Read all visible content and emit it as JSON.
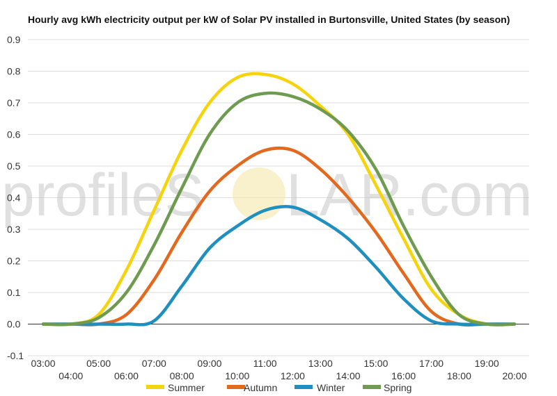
{
  "chart_data": {
    "type": "line",
    "title": "Hourly avg kWh electricity output per kW of Solar PV installed in Burtonsville, United States (by season)",
    "xlabel": "",
    "ylabel": "",
    "ylim": [
      -0.1,
      0.9
    ],
    "yticks": [
      "0.9",
      "0.8",
      "0.7",
      "0.6",
      "0.5",
      "0.4",
      "0.3",
      "0.2",
      "0.1",
      "0.0",
      "-0.1"
    ],
    "categories": [
      "03:00",
      "04:00",
      "05:00",
      "06:00",
      "07:00",
      "08:00",
      "09:00",
      "10:00",
      "11:00",
      "12:00",
      "13:00",
      "14:00",
      "15:00",
      "16:00",
      "17:00",
      "18:00",
      "19:00",
      "20:00"
    ],
    "grid": true,
    "legend_position": "bottom",
    "series": [
      {
        "name": "Summer",
        "color": "#f5d40e",
        "values": [
          0.0,
          0.0,
          0.03,
          0.17,
          0.36,
          0.55,
          0.7,
          0.78,
          0.79,
          0.76,
          0.69,
          0.6,
          0.44,
          0.27,
          0.11,
          0.03,
          0.0,
          0.0
        ]
      },
      {
        "name": "Autumn",
        "color": "#e3691f",
        "values": [
          0.0,
          0.0,
          0.0,
          0.03,
          0.14,
          0.29,
          0.42,
          0.5,
          0.55,
          0.55,
          0.49,
          0.4,
          0.29,
          0.16,
          0.04,
          0.0,
          0.0,
          0.0
        ]
      },
      {
        "name": "Winter",
        "color": "#1e8fbe",
        "values": [
          0.0,
          0.0,
          0.0,
          0.0,
          0.01,
          0.12,
          0.24,
          0.31,
          0.36,
          0.37,
          0.33,
          0.27,
          0.18,
          0.08,
          0.01,
          0.0,
          0.0,
          0.0
        ]
      },
      {
        "name": "Spring",
        "color": "#6e9b50",
        "values": [
          0.0,
          0.0,
          0.02,
          0.1,
          0.25,
          0.43,
          0.6,
          0.7,
          0.73,
          0.72,
          0.68,
          0.61,
          0.49,
          0.31,
          0.15,
          0.03,
          0.0,
          0.0
        ]
      }
    ]
  },
  "watermark": {
    "left": "profileS",
    "right": "LAR.com"
  }
}
